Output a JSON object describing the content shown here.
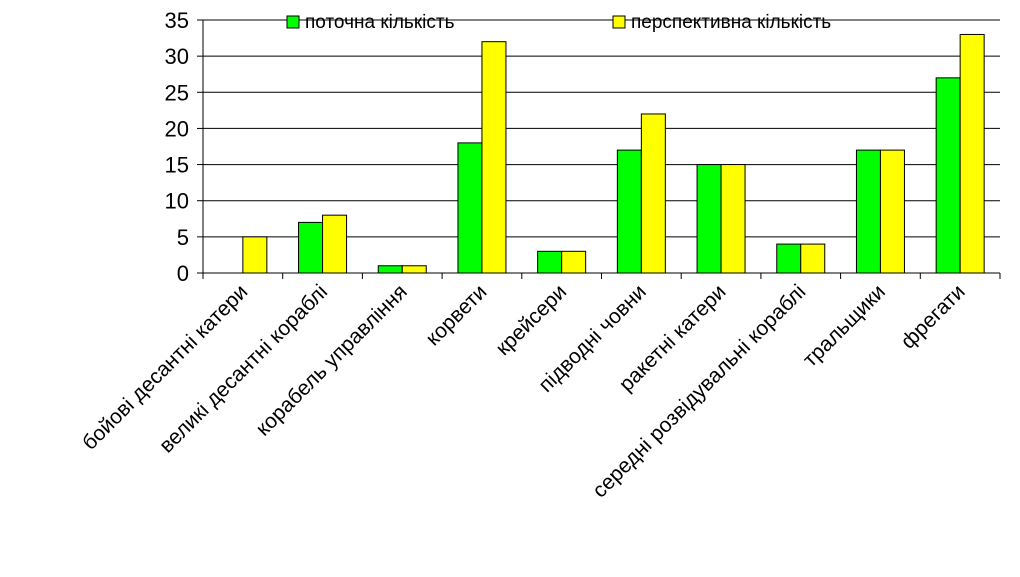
{
  "chart_data": {
    "type": "bar",
    "categories": [
      "бойові десантні катери",
      "великі десантні кораблі",
      "корабель управління",
      "корвети",
      "крейсери",
      "підводні човни",
      "ракетні катери",
      "середні розвідувальні кораблі",
      "тральщики",
      "фрегати"
    ],
    "series": [
      {
        "name": "поточна кількість",
        "color": "#00ff00",
        "values": [
          0,
          7,
          1,
          18,
          3,
          17,
          15,
          4,
          17,
          27
        ]
      },
      {
        "name": "перспективна кількість",
        "color": "#ffff00",
        "values": [
          5,
          8,
          1,
          32,
          3,
          22,
          15,
          4,
          17,
          33
        ]
      }
    ],
    "ylim": [
      0,
      35
    ],
    "yticks": [
      0,
      5,
      10,
      15,
      20,
      25,
      30,
      35
    ],
    "grid": true,
    "legend": "top"
  }
}
